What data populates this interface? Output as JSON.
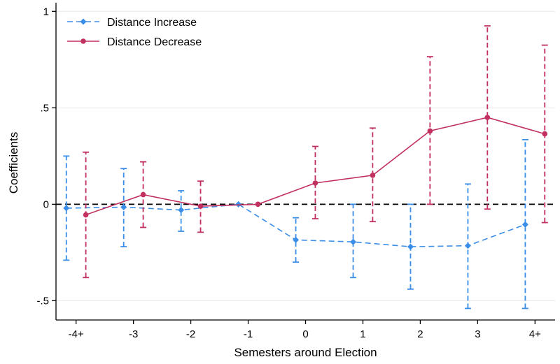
{
  "chart_data": {
    "type": "line",
    "title": "",
    "xlabel": "Semesters around Election",
    "ylabel": "Coefficients",
    "x_tick_labels": [
      "-4+",
      "-3",
      "-2",
      "-1",
      "0",
      "1",
      "2",
      "3",
      "4+"
    ],
    "y_ticks": [
      {
        "value": 1,
        "label": "1"
      },
      {
        "value": 0.5,
        "label": ".5"
      },
      {
        "value": 0,
        "label": "0"
      },
      {
        "value": -0.5,
        "label": "-.5"
      }
    ],
    "ylim": [
      -0.6,
      1.03
    ],
    "xlim": [
      -0.35,
      8.35
    ],
    "grid": true,
    "zero_line": true,
    "legend_position": "top-left",
    "series": [
      {
        "name": "Distance Increase",
        "color": "#3b8ee8",
        "marker": "diamond",
        "offset": -0.17,
        "values": [
          -0.02,
          -0.015,
          -0.03,
          0.0,
          -0.185,
          -0.195,
          -0.22,
          -0.215,
          -0.105
        ],
        "ci_low": [
          -0.29,
          -0.22,
          -0.14,
          0.0,
          -0.3,
          -0.38,
          -0.44,
          -0.54,
          -0.54
        ],
        "ci_high": [
          0.25,
          0.185,
          0.07,
          0.0,
          -0.07,
          0.0,
          0.0,
          0.105,
          0.335
        ]
      },
      {
        "name": "Distance Decrease",
        "color": "#c2305f",
        "marker": "circle",
        "offset": 0.17,
        "values": [
          -0.055,
          0.05,
          -0.01,
          0.0,
          0.11,
          0.15,
          0.38,
          0.45,
          0.365
        ],
        "ci_low": [
          -0.38,
          -0.12,
          -0.145,
          0.0,
          -0.075,
          -0.09,
          0.0,
          -0.025,
          -0.095
        ],
        "ci_high": [
          0.27,
          0.22,
          0.12,
          0.0,
          0.3,
          0.395,
          0.765,
          0.925,
          0.825
        ]
      }
    ]
  }
}
